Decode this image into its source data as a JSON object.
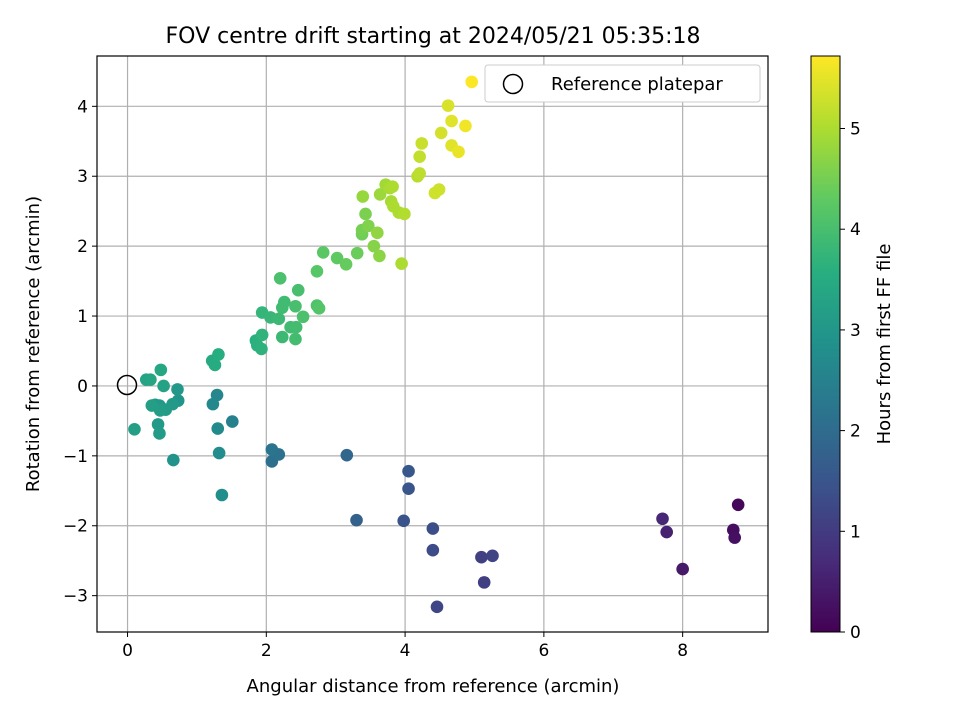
{
  "chart_data": {
    "type": "scatter",
    "title": "FOV centre drift starting at 2024/05/21 05:35:18",
    "xlabel": "Angular distance from reference (arcmin)",
    "ylabel": "Rotation from reference (arcmin)",
    "xlim": [
      -0.44,
      9.23
    ],
    "ylim": [
      -3.52,
      4.72
    ],
    "xticks": [
      0,
      2,
      4,
      6,
      8
    ],
    "yticks": [
      -3,
      -2,
      -1,
      0,
      1,
      2,
      3,
      4
    ],
    "grid": true,
    "colormap": "viridis",
    "colorbar": {
      "label": "Hours from first FF file",
      "range": [
        0,
        5.72
      ],
      "ticks": [
        0,
        1,
        2,
        3,
        4,
        5
      ]
    },
    "legend": {
      "position": "top-right",
      "entries": [
        {
          "label": "Reference platepar",
          "marker": "open-circle"
        }
      ]
    },
    "reference_point": {
      "x": 0,
      "y": 0
    },
    "points": [
      {
        "x": 8.8,
        "y": -1.7,
        "c": 0.1
      },
      {
        "x": 8.73,
        "y": -2.06,
        "c": 0.2
      },
      {
        "x": 8.75,
        "y": -2.17,
        "c": 0.25
      },
      {
        "x": 8.0,
        "y": -2.62,
        "c": 0.4
      },
      {
        "x": 7.77,
        "y": -2.09,
        "c": 0.55
      },
      {
        "x": 7.71,
        "y": -1.9,
        "c": 0.65
      },
      {
        "x": 5.14,
        "y": -2.81,
        "c": 1.05
      },
      {
        "x": 5.1,
        "y": -2.45,
        "c": 1.1
      },
      {
        "x": 5.26,
        "y": -2.43,
        "c": 1.15
      },
      {
        "x": 4.46,
        "y": -3.16,
        "c": 1.2
      },
      {
        "x": 4.4,
        "y": -2.35,
        "c": 1.3
      },
      {
        "x": 4.4,
        "y": -2.04,
        "c": 1.35
      },
      {
        "x": 3.98,
        "y": -1.93,
        "c": 1.45
      },
      {
        "x": 4.05,
        "y": -1.47,
        "c": 1.5
      },
      {
        "x": 4.05,
        "y": -1.22,
        "c": 1.55
      },
      {
        "x": 3.3,
        "y": -1.92,
        "c": 1.75
      },
      {
        "x": 3.16,
        "y": -0.99,
        "c": 1.9
      },
      {
        "x": 2.08,
        "y": -1.08,
        "c": 2.1
      },
      {
        "x": 2.18,
        "y": -0.98,
        "c": 2.15
      },
      {
        "x": 2.08,
        "y": -0.91,
        "c": 2.2
      },
      {
        "x": 1.51,
        "y": -0.51,
        "c": 2.5
      },
      {
        "x": 1.29,
        "y": -0.13,
        "c": 2.6
      },
      {
        "x": 1.23,
        "y": -0.26,
        "c": 2.65
      },
      {
        "x": 1.3,
        "y": -0.61,
        "c": 2.7
      },
      {
        "x": 1.32,
        "y": -0.96,
        "c": 2.75
      },
      {
        "x": 1.36,
        "y": -1.56,
        "c": 2.8
      },
      {
        "x": 0.66,
        "y": -1.06,
        "c": 2.9
      },
      {
        "x": 0.73,
        "y": -0.21,
        "c": 2.95
      },
      {
        "x": 0.72,
        "y": -0.05,
        "c": 3.0
      },
      {
        "x": 0.65,
        "y": -0.26,
        "c": 3.05
      },
      {
        "x": 0.55,
        "y": -0.34,
        "c": 3.1
      },
      {
        "x": 0.46,
        "y": -0.28,
        "c": 3.05
      },
      {
        "x": 0.4,
        "y": -0.27,
        "c": 3.0
      },
      {
        "x": 0.44,
        "y": -0.55,
        "c": 3.05
      },
      {
        "x": 0.46,
        "y": -0.68,
        "c": 3.1
      },
      {
        "x": 0.47,
        "y": -0.35,
        "c": 3.15
      },
      {
        "x": 0.35,
        "y": -0.28,
        "c": 3.2
      },
      {
        "x": 0.52,
        "y": 0.0,
        "c": 3.25
      },
      {
        "x": 0.1,
        "y": -0.62,
        "c": 3.2
      },
      {
        "x": 0.27,
        "y": 0.09,
        "c": 3.3
      },
      {
        "x": 0.33,
        "y": 0.09,
        "c": 3.35
      },
      {
        "x": 0.48,
        "y": 0.23,
        "c": 3.4
      },
      {
        "x": 1.22,
        "y": 0.36,
        "c": 3.45
      },
      {
        "x": 1.26,
        "y": 0.3,
        "c": 3.5
      },
      {
        "x": 1.31,
        "y": 0.45,
        "c": 3.55
      },
      {
        "x": 1.85,
        "y": 0.65,
        "c": 3.6
      },
      {
        "x": 1.87,
        "y": 0.58,
        "c": 3.62
      },
      {
        "x": 1.93,
        "y": 0.53,
        "c": 3.65
      },
      {
        "x": 1.94,
        "y": 0.73,
        "c": 3.7
      },
      {
        "x": 1.94,
        "y": 1.05,
        "c": 3.75
      },
      {
        "x": 2.06,
        "y": 0.98,
        "c": 3.8
      },
      {
        "x": 2.18,
        "y": 0.96,
        "c": 3.85
      },
      {
        "x": 2.23,
        "y": 0.7,
        "c": 3.85
      },
      {
        "x": 2.23,
        "y": 1.12,
        "c": 3.9
      },
      {
        "x": 2.26,
        "y": 1.2,
        "c": 3.9
      },
      {
        "x": 2.35,
        "y": 0.84,
        "c": 3.92
      },
      {
        "x": 2.42,
        "y": 0.67,
        "c": 3.95
      },
      {
        "x": 2.43,
        "y": 0.84,
        "c": 3.95
      },
      {
        "x": 2.42,
        "y": 1.14,
        "c": 4.0
      },
      {
        "x": 2.46,
        "y": 1.37,
        "c": 4.0
      },
      {
        "x": 2.53,
        "y": 0.99,
        "c": 4.05
      },
      {
        "x": 2.2,
        "y": 1.54,
        "c": 4.05
      },
      {
        "x": 2.73,
        "y": 1.15,
        "c": 4.1
      },
      {
        "x": 2.76,
        "y": 1.11,
        "c": 4.15
      },
      {
        "x": 2.73,
        "y": 1.64,
        "c": 4.2
      },
      {
        "x": 2.82,
        "y": 1.91,
        "c": 4.25
      },
      {
        "x": 3.02,
        "y": 1.83,
        "c": 4.3
      },
      {
        "x": 3.15,
        "y": 1.74,
        "c": 4.35
      },
      {
        "x": 3.31,
        "y": 1.9,
        "c": 4.4
      },
      {
        "x": 3.38,
        "y": 2.17,
        "c": 4.45
      },
      {
        "x": 3.38,
        "y": 2.23,
        "c": 4.5
      },
      {
        "x": 3.43,
        "y": 2.46,
        "c": 4.55
      },
      {
        "x": 3.47,
        "y": 2.29,
        "c": 4.6
      },
      {
        "x": 3.55,
        "y": 2.0,
        "c": 4.65
      },
      {
        "x": 3.63,
        "y": 1.86,
        "c": 4.7
      },
      {
        "x": 3.6,
        "y": 2.19,
        "c": 4.75
      },
      {
        "x": 3.39,
        "y": 2.71,
        "c": 4.8
      },
      {
        "x": 3.64,
        "y": 2.74,
        "c": 4.85
      },
      {
        "x": 3.72,
        "y": 2.88,
        "c": 4.9
      },
      {
        "x": 3.78,
        "y": 2.83,
        "c": 4.95
      },
      {
        "x": 3.82,
        "y": 2.85,
        "c": 5.0
      },
      {
        "x": 3.8,
        "y": 2.64,
        "c": 4.95
      },
      {
        "x": 3.83,
        "y": 2.57,
        "c": 5.0
      },
      {
        "x": 3.91,
        "y": 2.48,
        "c": 5.0
      },
      {
        "x": 3.99,
        "y": 2.46,
        "c": 5.05
      },
      {
        "x": 3.95,
        "y": 1.75,
        "c": 5.0
      },
      {
        "x": 4.18,
        "y": 3.0,
        "c": 5.1
      },
      {
        "x": 4.21,
        "y": 3.04,
        "c": 5.15
      },
      {
        "x": 4.21,
        "y": 3.28,
        "c": 5.2
      },
      {
        "x": 4.24,
        "y": 3.47,
        "c": 5.25
      },
      {
        "x": 4.43,
        "y": 2.76,
        "c": 5.3
      },
      {
        "x": 4.49,
        "y": 2.81,
        "c": 5.3
      },
      {
        "x": 4.52,
        "y": 3.62,
        "c": 5.35
      },
      {
        "x": 4.62,
        "y": 4.01,
        "c": 5.4
      },
      {
        "x": 4.67,
        "y": 3.79,
        "c": 5.45
      },
      {
        "x": 4.67,
        "y": 3.44,
        "c": 5.45
      },
      {
        "x": 4.77,
        "y": 3.35,
        "c": 5.55
      },
      {
        "x": 4.87,
        "y": 3.72,
        "c": 5.6
      },
      {
        "x": 4.96,
        "y": 4.35,
        "c": 5.7
      }
    ]
  }
}
